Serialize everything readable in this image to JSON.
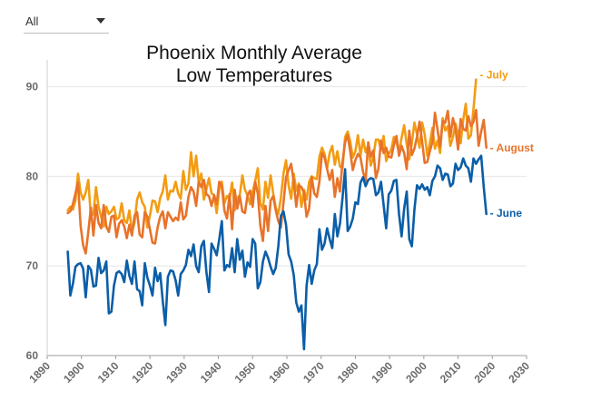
{
  "filter": {
    "selected": "All"
  },
  "chart_data": {
    "type": "line",
    "title_lines": [
      "Phoenix Monthly Average",
      "Low Temperatures"
    ],
    "xlabel": "",
    "ylabel": "",
    "xlim": [
      1890,
      2030
    ],
    "ylim": [
      60,
      93
    ],
    "x_ticks": [
      1890,
      1900,
      1910,
      1920,
      1930,
      1940,
      1950,
      1960,
      1970,
      1980,
      1990,
      2000,
      2010,
      2020,
      2030
    ],
    "y_ticks": [
      60,
      70,
      80,
      90
    ],
    "x_start": 1896,
    "grid": "horizontal",
    "legend": "inline labels at right end of lines",
    "series": [
      {
        "name": "July",
        "label": "- July",
        "color": "#f39c12",
        "values": [
          76.2,
          76.6,
          76.3,
          77.3,
          80.3,
          78.2,
          77.4,
          78.2,
          79.6,
          75.5,
          75.8,
          78.8,
          76.6,
          75.5,
          74.4,
          76.6,
          75.8,
          76.1,
          76.6,
          75.2,
          75.4,
          77.0,
          75.1,
          74.8,
          76.2,
          73.8,
          74.8,
          77.4,
          78.2,
          77.1,
          76.6,
          74.3,
          75.6,
          77.3,
          77.2,
          76.0,
          77.6,
          78.3,
          80.1,
          77.4,
          78.4,
          78.3,
          79.4,
          78.1,
          77.5,
          80.6,
          78.5,
          79.2,
          82.7,
          80.0,
          82.3,
          79.3,
          80.3,
          77.4,
          78.6,
          79.8,
          78.1,
          77.9,
          75.9,
          78.6,
          79.4,
          77.0,
          77.8,
          77.5,
          79.3,
          76.2,
          77.6,
          77.9,
          80.1,
          78.5,
          77.9,
          76.9,
          78.3,
          79.5,
          80.9,
          77.0,
          76.3,
          79.4,
          77.6,
          80.1,
          78.1,
          76.5,
          75.8,
          77.6,
          80.3,
          81.8,
          79.0,
          77.5,
          80.3,
          78.4,
          79.2,
          76.6,
          78.5,
          77.4,
          79.4,
          80.0,
          79.8,
          79.7,
          82.2,
          83.2,
          82.5,
          80.9,
          82.6,
          83.4,
          81.3,
          82.8,
          81.1,
          80.9,
          84.4,
          85.0,
          83.9,
          82.1,
          82.8,
          84.6,
          82.3,
          84.1,
          82.7,
          83.5,
          81.2,
          82.2,
          84.1,
          84.1,
          82.9,
          84.5,
          81.7,
          82.5,
          83.0,
          84.4,
          83.8,
          82.7,
          84.3,
          85.7,
          83.6,
          81.9,
          83.7,
          86.0,
          84.7,
          83.2,
          86.0,
          84.7,
          82.3,
          83.7,
          85.4,
          83.1,
          84.0,
          82.6,
          86.5,
          85.1,
          85.6,
          83.4,
          84.4,
          85.9,
          84.7,
          83.7,
          86.3,
          88.1,
          84.2,
          84.6,
          87.5,
          90.8
        ]
      },
      {
        "name": "August",
        "label": "- August",
        "color": "#e8732a",
        "values": [
          75.9,
          76.1,
          76.9,
          78.1,
          79.3,
          74.5,
          72.3,
          71.4,
          73.8,
          76.5,
          73.4,
          76.8,
          74.8,
          74.2,
          76.8,
          74.4,
          73.8,
          75.5,
          75.6,
          73.2,
          74.7,
          75.1,
          74.4,
          73.1,
          74.6,
          73.4,
          75.6,
          76.0,
          73.5,
          73.2,
          76.0,
          75.5,
          74.1,
          72.6,
          72.5,
          74.3,
          75.5,
          76.1,
          74.2,
          76.0,
          75.5,
          75.0,
          75.4,
          75.1,
          77.1,
          75.2,
          75.6,
          77.7,
          78.8,
          78.3,
          76.7,
          79.4,
          78.8,
          79.6,
          78.0,
          77.8,
          76.7,
          77.9,
          76.9,
          79.4,
          78.9,
          76.2,
          75.3,
          78.0,
          74.1,
          78.5,
          76.4,
          77.8,
          76.1,
          75.9,
          77.9,
          78.4,
          76.6,
          79.4,
          78.1,
          74.5,
          72.8,
          76.7,
          73.9,
          77.3,
          77.8,
          76.2,
          75.0,
          74.3,
          77.0,
          79.9,
          80.7,
          81.4,
          79.4,
          76.6,
          79.0,
          78.8,
          78.2,
          75.5,
          76.4,
          79.9,
          78.1,
          77.7,
          79.4,
          82.6,
          82.1,
          80.8,
          79.6,
          80.7,
          77.7,
          79.8,
          78.3,
          81.6,
          83.8,
          84.6,
          82.8,
          80.7,
          81.8,
          82.5,
          82.1,
          80.5,
          79.5,
          83.8,
          82.2,
          82.9,
          79.8,
          80.9,
          84.0,
          82.6,
          83.2,
          82.2,
          82.1,
          83.5,
          84.5,
          82.3,
          83.4,
          82.6,
          80.8,
          85.1,
          82.4,
          83.1,
          84.4,
          86.1,
          83.9,
          81.5,
          81.6,
          82.8,
          83.8,
          87.1,
          85.2,
          83.3,
          86.2,
          86.0,
          87.3,
          84.4,
          86.5,
          85.3,
          83.0,
          86.4,
          85.3,
          85.1,
          86.7,
          85.6,
          86.1,
          87.4,
          83.4,
          85.0,
          86.3,
          83.2
        ]
      },
      {
        "name": "June",
        "label": "- June",
        "color": "#0b5ea8",
        "values": [
          71.6,
          66.7,
          68.0,
          69.9,
          70.2,
          70.3,
          69.7,
          66.5,
          70.0,
          69.6,
          67.7,
          67.8,
          70.9,
          69.2,
          69.5,
          70.5,
          64.7,
          64.9,
          67.8,
          69.2,
          69.4,
          69.1,
          68.2,
          70.6,
          68.9,
          68.0,
          70.5,
          67.4,
          67.2,
          65.6,
          70.3,
          68.7,
          67.8,
          66.7,
          69.8,
          68.3,
          69.2,
          66.1,
          63.4,
          68.8,
          69.5,
          69.4,
          68.4,
          66.7,
          69.1,
          69.5,
          70.1,
          71.8,
          71.1,
          72.4,
          70.0,
          69.3,
          72.2,
          72.8,
          69.3,
          67.1,
          72.5,
          71.9,
          71.2,
          73.0,
          75.0,
          69.5,
          70.1,
          69.9,
          72.0,
          69.3,
          73.0,
          70.7,
          71.7,
          68.8,
          70.4,
          69.9,
          73.0,
          72.5,
          67.5,
          68.2,
          70.5,
          71.6,
          70.9,
          69.9,
          69.1,
          69.8,
          72.2,
          75.6,
          76.1,
          74.6,
          71.3,
          70.5,
          69.0,
          65.9,
          64.9,
          65.6,
          60.7,
          67.8,
          70.1,
          68.0,
          69.5,
          70.2,
          74.1,
          71.8,
          72.5,
          74.2,
          73.0,
          72.0,
          75.8,
          73.3,
          74.7,
          77.6,
          80.8,
          73.9,
          74.4,
          75.3,
          77.1,
          76.9,
          79.3,
          79.9,
          78.9,
          79.6,
          79.8,
          79.7,
          77.9,
          78.2,
          79.4,
          76.8,
          74.2,
          78.0,
          78.4,
          79.5,
          79.6,
          75.8,
          73.3,
          76.4,
          78.3,
          73.0,
          72.2,
          76.3,
          79.0,
          78.6,
          79.1,
          78.5,
          78.8,
          77.9,
          79.5,
          80.0,
          81.2,
          80.9,
          79.6,
          80.3,
          80.2,
          78.9,
          79.2,
          81.4,
          80.7,
          81.0,
          82.0,
          81.2,
          80.9,
          79.4,
          82.0,
          81.4,
          81.9,
          82.3,
          78.8,
          75.8
        ]
      }
    ]
  }
}
